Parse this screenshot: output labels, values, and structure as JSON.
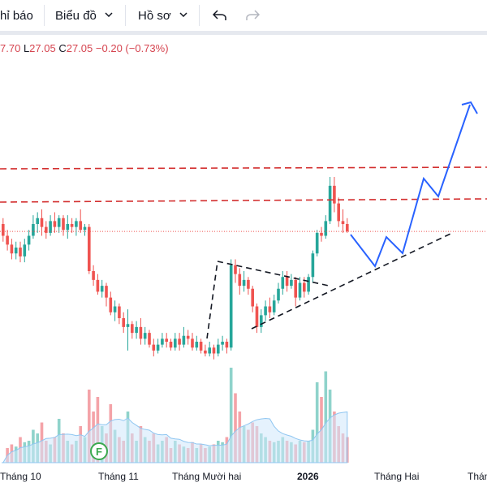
{
  "toolbar": {
    "alert_label": "hỉ báo",
    "chart_label": "Biểu đồ",
    "profile_label": "Hồ sơ"
  },
  "legend": {
    "open_text": "7.70",
    "low_label": "L",
    "low_value": "27.05",
    "close_label": "C",
    "close_value": "27.05",
    "change_text": "−0.20 (−0.73%)"
  },
  "time_axis": {
    "labels": [
      "Tháng 10",
      "Tháng 11",
      "Tháng Mười hai",
      "2026",
      "Tháng Hai",
      "Thán"
    ],
    "bold_label": "2026"
  },
  "event_marker": "F",
  "colors": {
    "up": "#26a69a",
    "down": "#ef5350",
    "projection": "#2962ff",
    "resistance": "#d32f2f"
  },
  "chart_data": {
    "type": "candlestick",
    "title": "",
    "last_price": 27.05,
    "last_change": -0.2,
    "last_change_pct": -0.73,
    "price_range_estimate": [
      22.5,
      30.5
    ],
    "series": [
      {
        "name": "",
        "values": [
          [
            27.3,
            26.9,
            27.5,
            26.7
          ],
          [
            26.9,
            26.6,
            27.1,
            26.4
          ],
          [
            26.6,
            26.3,
            26.8,
            26.1
          ],
          [
            26.3,
            26.5,
            26.7,
            26.1
          ],
          [
            26.5,
            26.2,
            26.7,
            26.0
          ],
          [
            26.2,
            26.6,
            26.8,
            26.0
          ],
          [
            26.6,
            26.9,
            27.1,
            26.4
          ],
          [
            26.9,
            27.3,
            27.6,
            26.8
          ],
          [
            27.3,
            27.5,
            27.7,
            27.0
          ],
          [
            27.5,
            27.2,
            27.8,
            26.9
          ],
          [
            27.2,
            27.0,
            27.4,
            26.8
          ],
          [
            27.0,
            27.4,
            27.6,
            26.9
          ],
          [
            27.4,
            27.2,
            27.7,
            27.0
          ],
          [
            27.2,
            27.5,
            27.6,
            27.0
          ],
          [
            27.5,
            27.1,
            27.6,
            26.9
          ],
          [
            27.1,
            27.3,
            27.6,
            26.8
          ],
          [
            27.3,
            27.2,
            27.5,
            27.0
          ],
          [
            27.2,
            27.4,
            27.5,
            26.9
          ],
          [
            27.4,
            27.1,
            27.8,
            27.0
          ],
          [
            27.1,
            27.2,
            27.3,
            26.9
          ],
          [
            27.2,
            25.7,
            27.3,
            25.6
          ],
          [
            25.7,
            25.4,
            25.9,
            25.2
          ],
          [
            25.4,
            25.0,
            25.6,
            24.9
          ],
          [
            25.0,
            25.2,
            25.4,
            24.8
          ],
          [
            25.2,
            24.8,
            25.3,
            24.5
          ],
          [
            24.8,
            24.3,
            25.0,
            24.2
          ],
          [
            24.3,
            24.5,
            24.7,
            24.0
          ],
          [
            24.5,
            24.1,
            24.6,
            23.9
          ],
          [
            24.1,
            23.8,
            24.3,
            23.6
          ],
          [
            23.8,
            23.9,
            24.4,
            23.0
          ],
          [
            23.9,
            23.6,
            24.0,
            23.4
          ],
          [
            23.6,
            23.8,
            24.0,
            23.4
          ],
          [
            23.8,
            23.4,
            24.1,
            23.2
          ],
          [
            23.4,
            23.6,
            23.8,
            23.2
          ],
          [
            23.6,
            23.2,
            23.7,
            23.1
          ],
          [
            23.2,
            23.0,
            23.4,
            22.8
          ],
          [
            23.0,
            23.2,
            23.4,
            22.9
          ],
          [
            23.2,
            23.4,
            23.6,
            23.1
          ],
          [
            23.4,
            23.3,
            23.6,
            23.1
          ],
          [
            23.3,
            23.1,
            23.4,
            23.0
          ],
          [
            23.1,
            23.4,
            23.6,
            23.0
          ],
          [
            23.4,
            23.2,
            23.6,
            23.0
          ],
          [
            23.2,
            23.5,
            23.8,
            23.1
          ],
          [
            23.5,
            23.4,
            23.7,
            23.2
          ],
          [
            23.4,
            23.1,
            23.6,
            23.0
          ],
          [
            23.1,
            23.3,
            23.5,
            23.0
          ],
          [
            23.3,
            23.0,
            23.4,
            22.9
          ],
          [
            23.0,
            22.9,
            23.2,
            22.8
          ],
          [
            22.9,
            23.1,
            23.3,
            22.8
          ],
          [
            23.1,
            22.9,
            23.2,
            22.7
          ],
          [
            22.9,
            23.2,
            23.4,
            22.8
          ],
          [
            23.2,
            23.3,
            23.5,
            23.0
          ],
          [
            23.3,
            23.1,
            23.4,
            22.9
          ],
          [
            23.1,
            25.9,
            26.1,
            23.0
          ],
          [
            25.9,
            25.6,
            26.1,
            25.3
          ],
          [
            25.6,
            25.2,
            25.8,
            24.9
          ],
          [
            25.2,
            25.4,
            25.7,
            25.0
          ],
          [
            25.4,
            25.1,
            25.5,
            24.9
          ],
          [
            25.1,
            24.5,
            25.2,
            24.3
          ],
          [
            24.5,
            23.8,
            24.6,
            23.6
          ],
          [
            23.8,
            24.2,
            24.4,
            23.6
          ],
          [
            24.2,
            24.5,
            24.7,
            24.0
          ],
          [
            24.5,
            24.3,
            24.8,
            24.1
          ],
          [
            24.3,
            24.7,
            24.9,
            24.2
          ],
          [
            24.7,
            25.1,
            25.3,
            24.6
          ],
          [
            25.1,
            25.5,
            25.7,
            24.9
          ],
          [
            25.5,
            25.2,
            25.7,
            25.0
          ],
          [
            25.2,
            25.4,
            25.6,
            25.1
          ],
          [
            25.4,
            24.8,
            25.5,
            24.5
          ],
          [
            24.8,
            25.3,
            25.5,
            24.7
          ],
          [
            25.3,
            25.0,
            25.5,
            24.8
          ],
          [
            25.0,
            25.5,
            25.6,
            24.9
          ],
          [
            25.5,
            26.3,
            26.4,
            25.3
          ],
          [
            26.3,
            27.0,
            27.1,
            26.2
          ],
          [
            27.0,
            26.9,
            27.2,
            26.7
          ],
          [
            26.9,
            27.4,
            27.6,
            26.8
          ],
          [
            27.4,
            28.6,
            28.9,
            27.3
          ],
          [
            28.6,
            28.0,
            28.9,
            27.7
          ],
          [
            28.0,
            27.4,
            28.2,
            27.2
          ],
          [
            27.4,
            27.3,
            27.8,
            27.0
          ],
          [
            27.3,
            27.05,
            27.5,
            27.0
          ]
        ]
      },
      {
        "name": "",
        "values": [
          [
            0,
            0.2,
            0.25,
            0.22,
            0.35,
            0.28,
            0.3,
            0.45,
            0.4,
            0.55,
            0.3,
            0.25,
            0.35,
            0.6,
            0.4,
            0.3,
            0.25,
            0.3,
            0.5,
            0.35,
            1.0,
            0.7,
            0.9,
            0.5,
            0.4,
            0.8,
            0.45,
            0.35,
            0.3,
            0.7,
            0.4,
            0.3,
            0.5,
            0.35,
            0.3,
            0.4,
            0.25,
            0.3,
            0.35,
            0.2,
            0.3,
            0.25,
            0.22,
            0.2,
            0.28,
            0.2,
            0.25,
            0.2,
            0.22,
            0.25,
            0.3,
            0.28,
            0.35,
            1.3,
            0.95,
            0.7,
            0.5,
            0.45,
            0.55,
            0.5,
            0.4,
            0.35,
            0.3,
            0.28,
            0.3,
            0.35,
            0.3,
            0.28,
            0.25,
            0.3,
            0.28,
            0.3,
            0.45,
            1.1,
            0.9,
            1.25,
            1.0,
            0.7,
            0.5,
            0.4,
            0.35
          ]
        ]
      }
    ],
    "resistance_levels": [
      29.8,
      28.8
    ],
    "current_price_line": 27.05,
    "annotation": "triangle-breakout-projection"
  }
}
